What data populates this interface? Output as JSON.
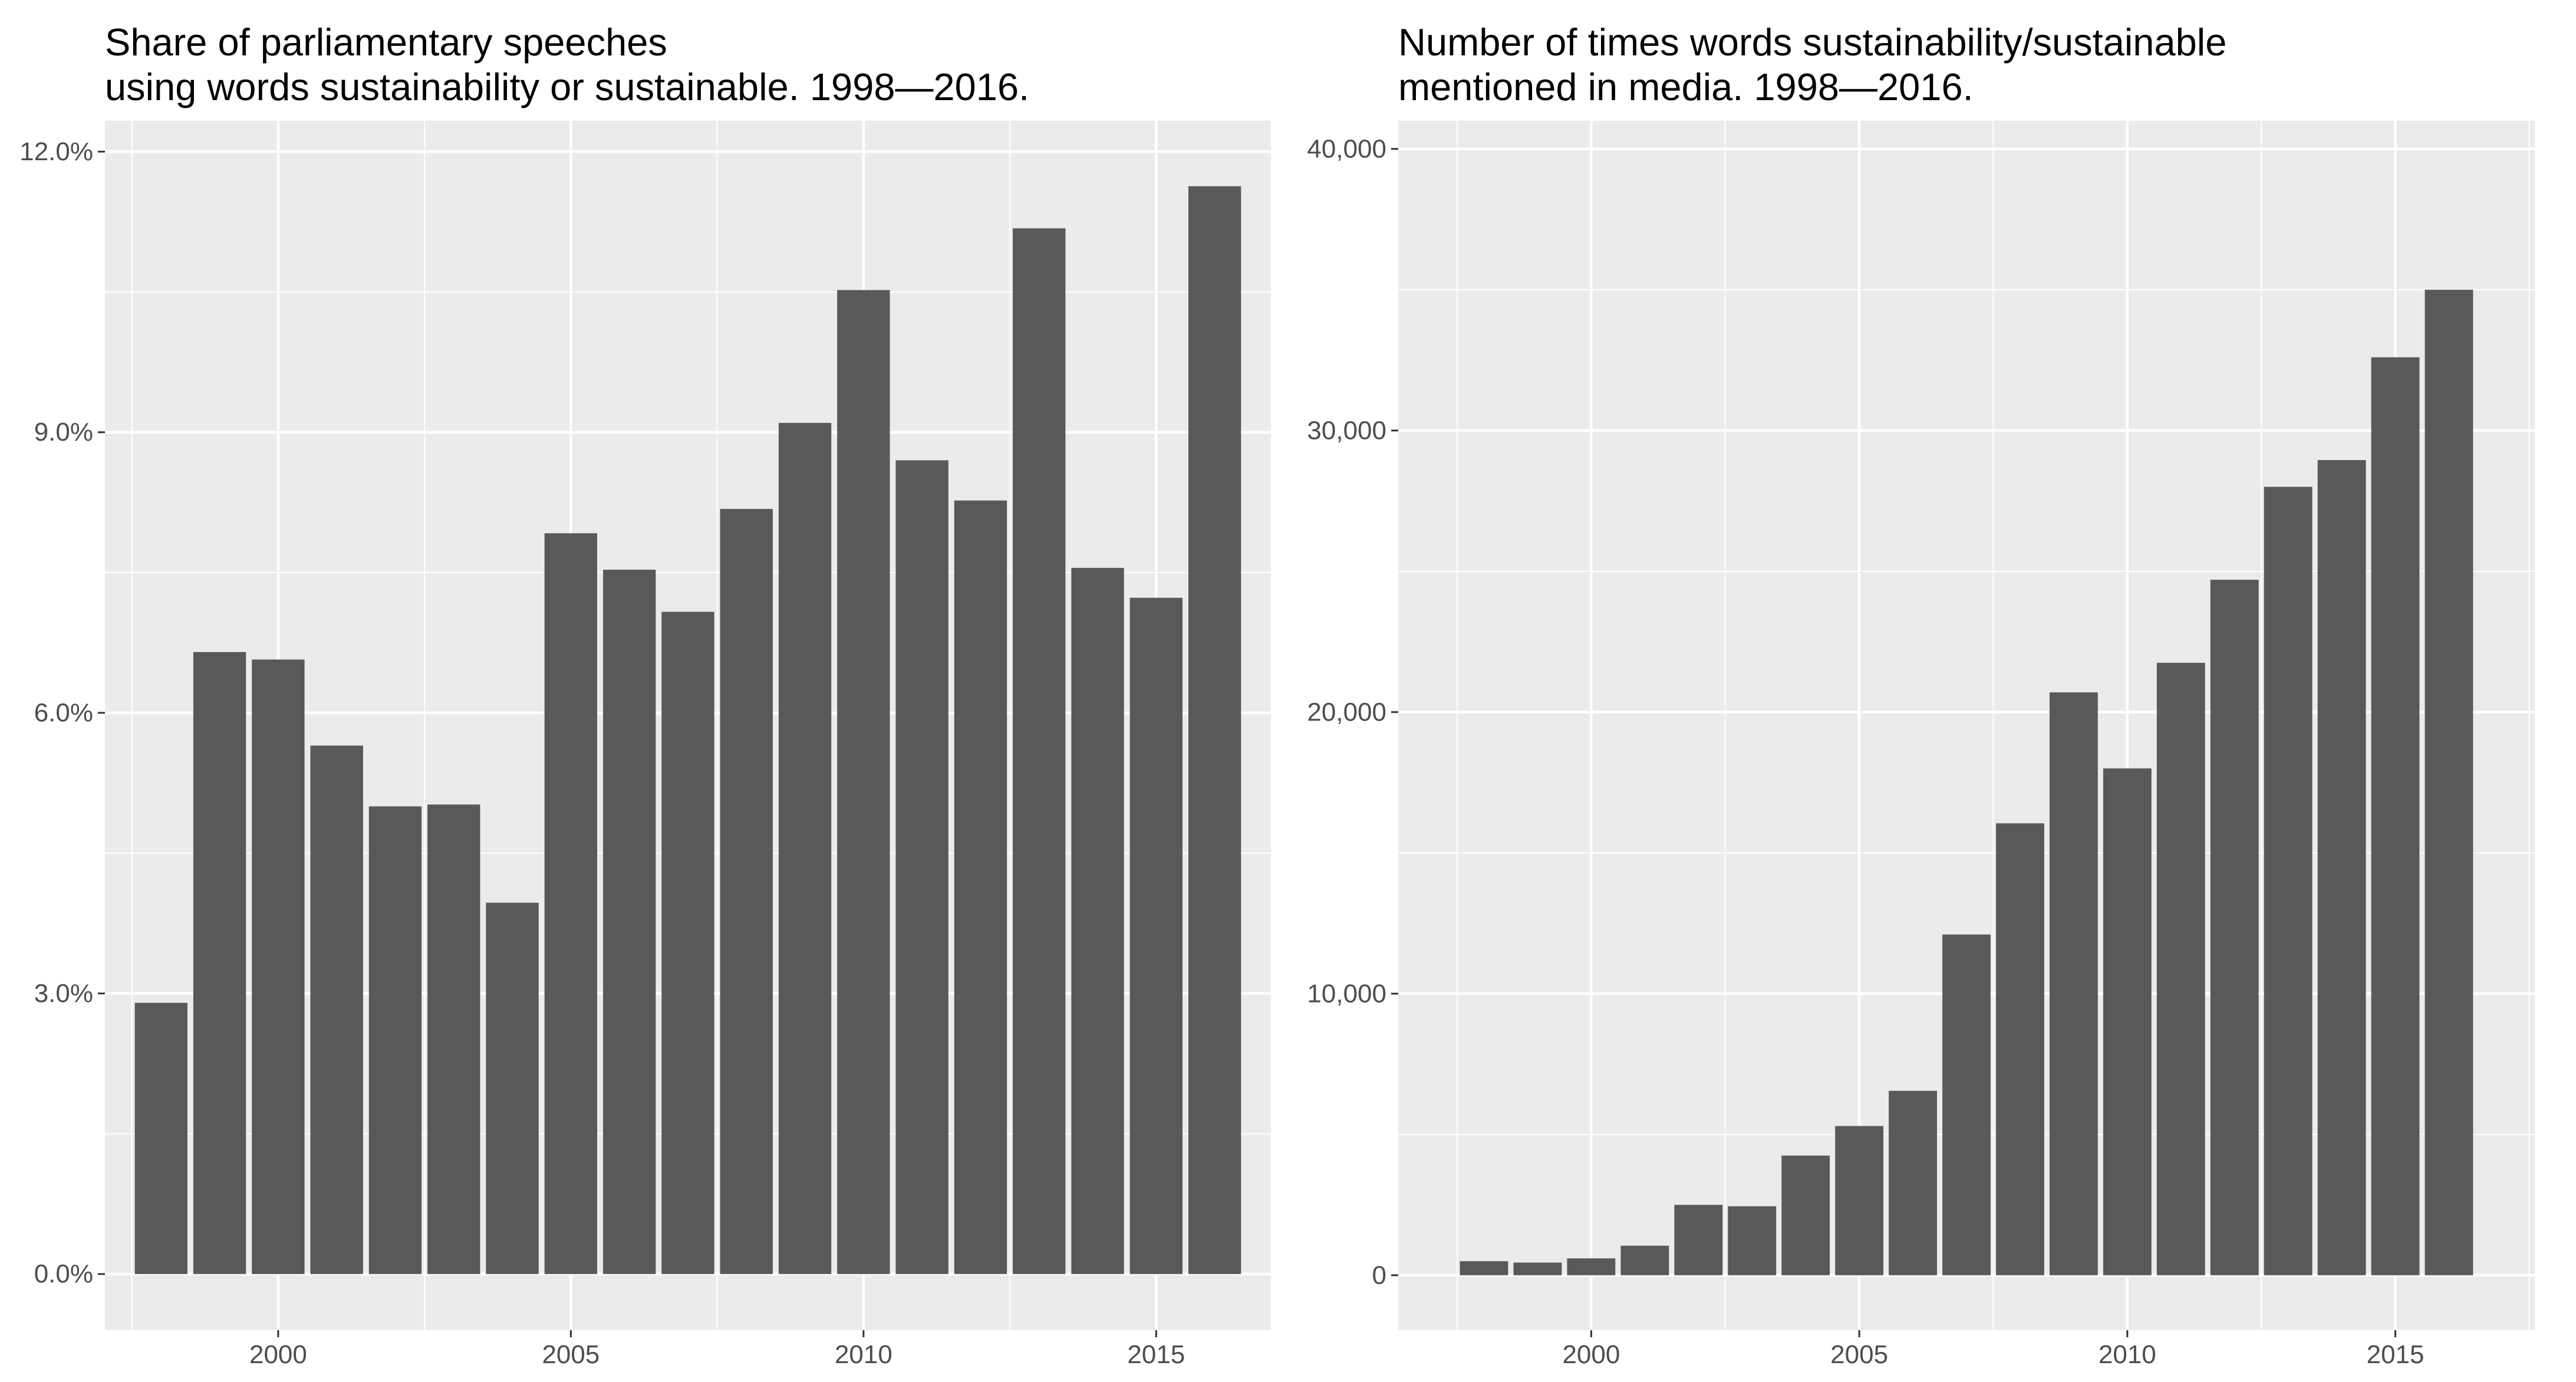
{
  "colors": {
    "panel_bg": "#ebebeb",
    "grid": "#ffffff",
    "bar": "#595959",
    "tick_text": "#4d4d4d",
    "tick_mark": "#333333"
  },
  "chart_data": [
    {
      "type": "bar",
      "title_line1": "Share of parliamentary speeches",
      "title_line2": "using words sustainability or sustainable. 1998—2016.",
      "xlabel": "",
      "ylabel": "",
      "x": [
        1998,
        1999,
        2000,
        2001,
        2002,
        2003,
        2004,
        2005,
        2006,
        2007,
        2008,
        2009,
        2010,
        2011,
        2012,
        2013,
        2014,
        2015,
        2016
      ],
      "values": [
        2.9,
        6.65,
        6.57,
        5.65,
        5.0,
        5.02,
        3.97,
        7.92,
        7.53,
        7.08,
        8.18,
        9.1,
        10.52,
        8.7,
        8.27,
        11.18,
        7.55,
        7.23,
        11.63
      ],
      "y_ticks": [
        0,
        3,
        6,
        9,
        12
      ],
      "y_tick_labels": [
        "0.0%",
        "3.0%",
        "6.0%",
        "9.0%",
        "12.0%"
      ],
      "x_ticks": [
        2000,
        2005,
        2010,
        2015
      ],
      "x_tick_labels": [
        "2000",
        "2005",
        "2010",
        "2015"
      ],
      "ylim": [
        -0.6,
        12.33
      ],
      "xlim": [
        1997.04,
        2016.96
      ],
      "grid": true,
      "legend": "none"
    },
    {
      "type": "bar",
      "title_line1": "Number of times words sustainability/sustainable",
      "title_line2": "mentioned in media. 1998—2016.",
      "xlabel": "",
      "ylabel": "",
      "x": [
        1998,
        1999,
        2000,
        2001,
        2002,
        2003,
        2004,
        2005,
        2006,
        2007,
        2008,
        2009,
        2010,
        2011,
        2012,
        2013,
        2014,
        2015,
        2016
      ],
      "values": [
        500,
        450,
        600,
        1050,
        2500,
        2450,
        4250,
        5300,
        6550,
        12100,
        16050,
        20700,
        18000,
        21750,
        24700,
        28000,
        28950,
        32600,
        35000
      ],
      "y_ticks": [
        0,
        10000,
        20000,
        30000,
        40000
      ],
      "y_tick_labels": [
        "0",
        "10,000",
        "20,000",
        "30,000",
        "40,000"
      ],
      "x_ticks": [
        2000,
        2005,
        2010,
        2015
      ],
      "x_tick_labels": [
        "2000",
        "2005",
        "2010",
        "2015"
      ],
      "ylim": [
        -1950,
        41000
      ],
      "xlim": [
        1996.4,
        2017.6
      ],
      "grid": true,
      "legend": "none"
    }
  ]
}
